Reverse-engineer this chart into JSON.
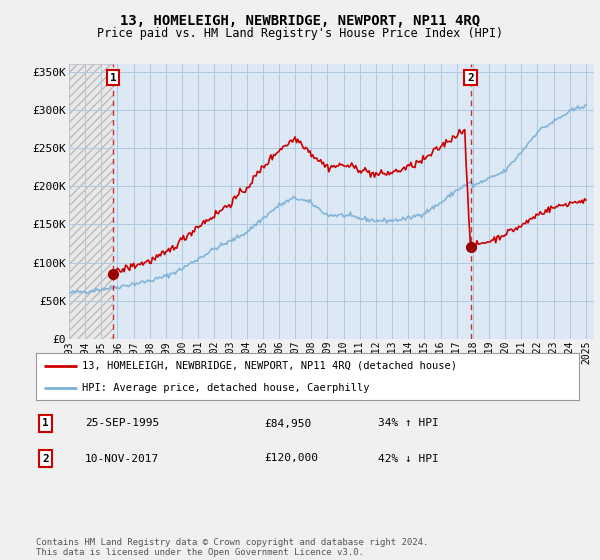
{
  "title": "13, HOMELEIGH, NEWBRIDGE, NEWPORT, NP11 4RQ",
  "subtitle": "Price paid vs. HM Land Registry's House Price Index (HPI)",
  "ylabel_ticks": [
    "£0",
    "£50K",
    "£100K",
    "£150K",
    "£200K",
    "£250K",
    "£300K",
    "£350K"
  ],
  "ytick_values": [
    0,
    50000,
    100000,
    150000,
    200000,
    250000,
    300000,
    350000
  ],
  "ylim": [
    0,
    360000
  ],
  "xlim_start": 1993.0,
  "xlim_end": 2025.5,
  "sale1_date": 1995.73,
  "sale1_price": 84950,
  "sale1_label": "1",
  "sale2_date": 2017.86,
  "sale2_price": 120000,
  "sale2_label": "2",
  "legend_line1": "13, HOMELEIGH, NEWBRIDGE, NEWPORT, NP11 4RQ (detached house)",
  "legend_line2": "HPI: Average price, detached house, Caerphilly",
  "table_row1": [
    "1",
    "25-SEP-1995",
    "£84,950",
    "34% ↑ HPI"
  ],
  "table_row2": [
    "2",
    "10-NOV-2017",
    "£120,000",
    "42% ↓ HPI"
  ],
  "footer": "Contains HM Land Registry data © Crown copyright and database right 2024.\nThis data is licensed under the Open Government Licence v3.0.",
  "hpi_color": "#7bafd4",
  "price_color": "#cc0000",
  "marker_color": "#990000",
  "plot_bg": "#dce9f5",
  "hatch_bg": "#e8e8e8",
  "bg_color": "#f0f0f0",
  "grid_color": "#b0c8e0",
  "box_color": "#cc0000"
}
